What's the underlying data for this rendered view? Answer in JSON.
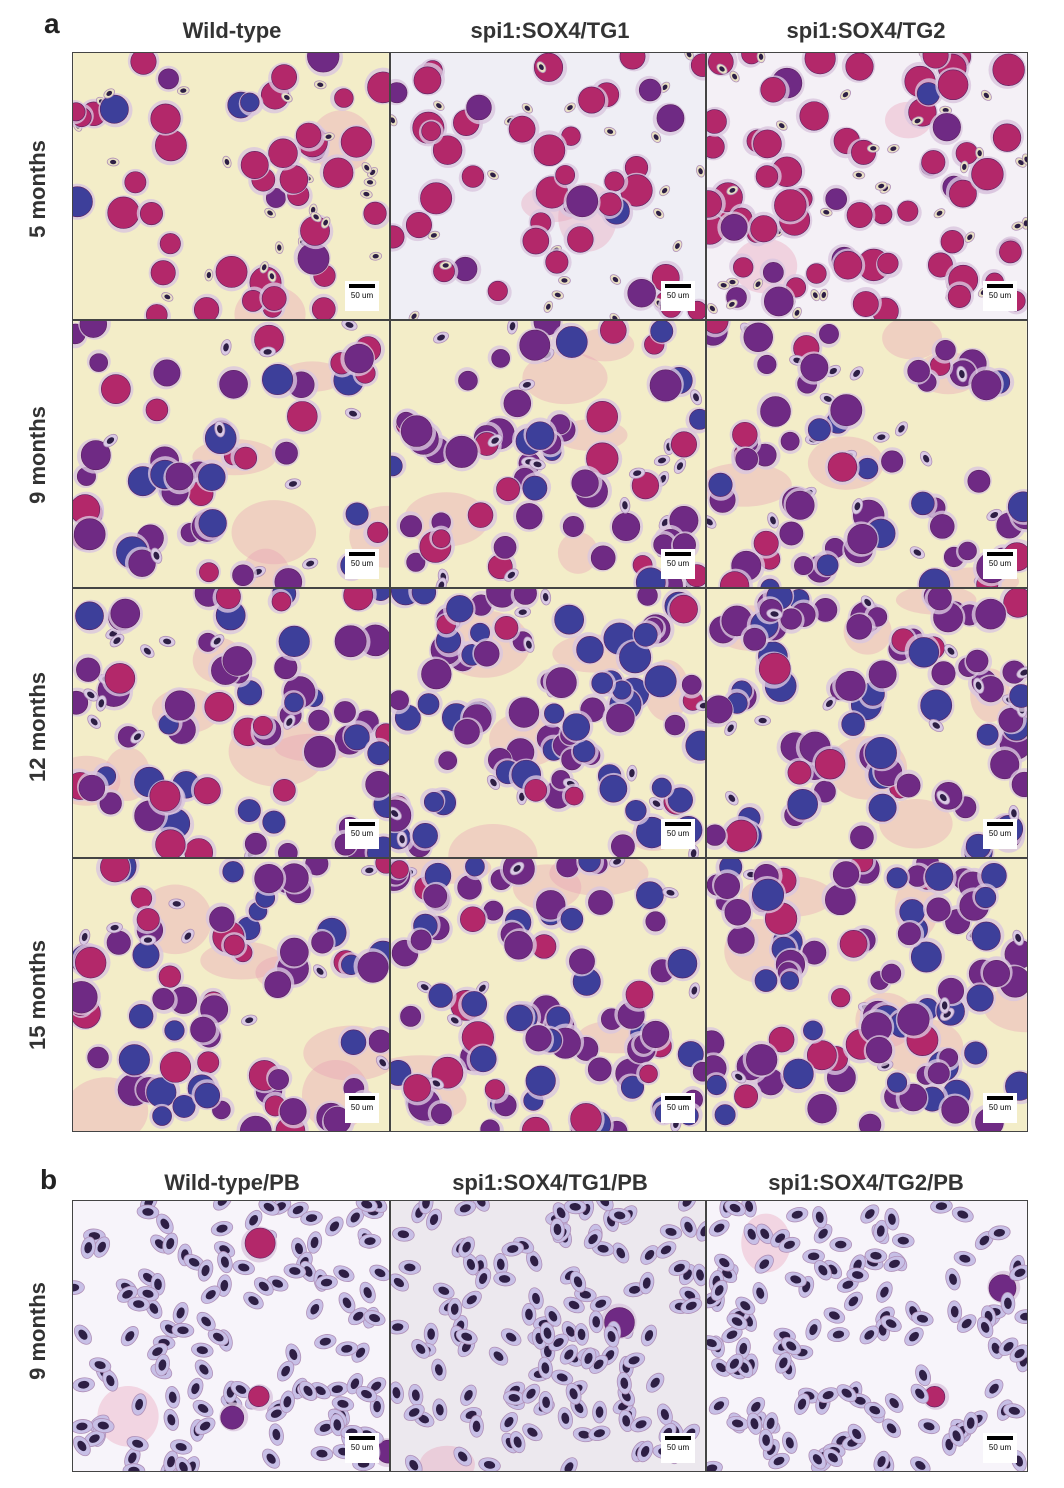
{
  "panel_a": {
    "letter": "a",
    "columns": [
      "Wild-type",
      "spi1:SOX4/TG1",
      "spi1:SOX4/TG2"
    ],
    "rows": [
      "5 months",
      "9 months",
      "12 months",
      "15 months"
    ],
    "scale_bar_label": "50 um"
  },
  "panel_b": {
    "letter": "b",
    "columns": [
      "Wild-type/PB",
      "spi1:SOX4/TG1/PB",
      "spi1:SOX4/TG2/PB"
    ],
    "rows": [
      "9 months"
    ],
    "scale_bar_label": "50 um"
  },
  "stain_colors": {
    "background_cream": "#f3edc8",
    "background_pink": "#f1d2da",
    "background_pale": "#f4f0f6",
    "nucleus_magenta": "#b3286a",
    "nucleus_purple": "#6f2a84",
    "blast_blue": "#3d3f9a",
    "rbc_nucleus": "#2e1f45",
    "rbc_cytoplasm": "#c7bfe6"
  }
}
